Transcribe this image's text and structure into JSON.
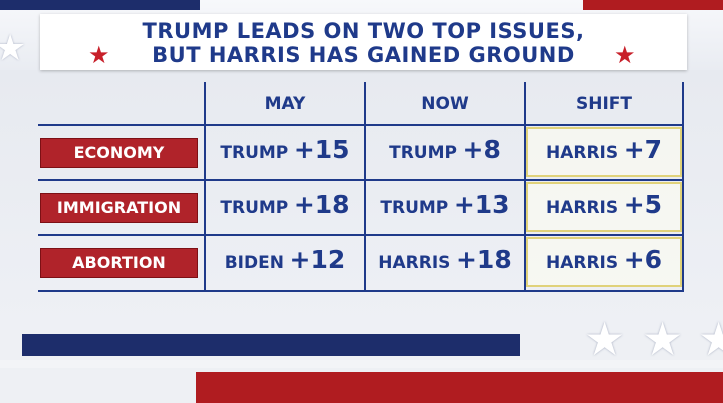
{
  "title": {
    "line1": "TRUMP LEADS ON TWO TOP ISSUES,",
    "line2": "BUT HARRIS HAS GAINED GROUND"
  },
  "columns": [
    "MAY",
    "NOW",
    "SHIFT"
  ],
  "rows": [
    {
      "label": "ECONOMY",
      "may": {
        "name": "TRUMP",
        "value": "+15"
      },
      "now": {
        "name": "TRUMP",
        "value": "+8"
      },
      "shift": {
        "name": "HARRIS",
        "value": "+7"
      }
    },
    {
      "label": "IMMIGRATION",
      "may": {
        "name": "TRUMP",
        "value": "+18"
      },
      "now": {
        "name": "TRUMP",
        "value": "+13"
      },
      "shift": {
        "name": "HARRIS",
        "value": "+5"
      }
    },
    {
      "label": "ABORTION",
      "may": {
        "name": "BIDEN",
        "value": "+12"
      },
      "now": {
        "name": "HARRIS",
        "value": "+18"
      },
      "shift": {
        "name": "HARRIS",
        "value": "+6"
      }
    }
  ],
  "colors": {
    "navy": "#1f3a8a",
    "label_red": "#b0232a",
    "shift_border": "#e0d27a"
  },
  "icons": [
    "star-icon"
  ]
}
